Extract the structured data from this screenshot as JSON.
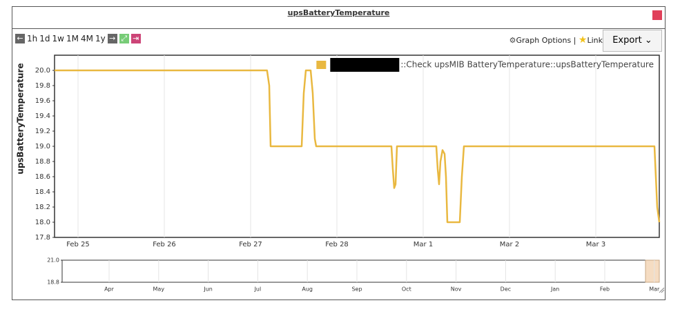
{
  "header": {
    "title": "upsBatteryTemperature"
  },
  "toolbar": {
    "ranges": [
      "1h",
      "1d",
      "1w",
      "1M",
      "4M",
      "1y"
    ],
    "graph_options": "Graph Options",
    "separator": "|",
    "link": "Link",
    "export": "Export"
  },
  "chart_data": {
    "type": "line",
    "y_label": "upsBatteryTemperature",
    "ylim": [
      17.8,
      20.2
    ],
    "yticks": [
      17.8,
      {
        "value": 18,
        "label": "18.0"
      },
      18.2,
      18.4,
      18.6,
      18.8,
      {
        "value": 19,
        "label": "19.0"
      },
      19.2,
      19.4,
      19.6,
      19.8,
      {
        "value": 20,
        "label": "20.0"
      }
    ],
    "xlim": [
      -0.272,
      6.736
    ],
    "xticks": [
      {
        "value": 0,
        "label": "Feb 25"
      },
      {
        "value": 1,
        "label": "Feb 26"
      },
      {
        "value": 2,
        "label": "Feb 27"
      },
      {
        "value": 3,
        "label": "Feb 28"
      },
      {
        "value": 4,
        "label": "Mar 1"
      },
      {
        "value": 5,
        "label": "Mar 2"
      },
      {
        "value": 6,
        "label": "Mar 3"
      }
    ],
    "grid": true,
    "legend": "top-right",
    "series": [
      {
        "name": "::Check upsMIB BatteryTemperature::upsBatteryTemperature",
        "color": "#e9b840",
        "x": [
          -0.272,
          2.19,
          2.216,
          2.232,
          2.592,
          2.616,
          2.64,
          2.696,
          2.72,
          2.744,
          2.76,
          3.632,
          3.648,
          3.664,
          3.68,
          3.696,
          4.152,
          4.168,
          4.184,
          4.2,
          4.224,
          4.248,
          4.264,
          4.28,
          4.424,
          4.448,
          4.472,
          6.68,
          6.696,
          6.712,
          6.736
        ],
        "values": [
          20.0,
          20.0,
          19.8,
          19.0,
          19.0,
          19.7,
          20.0,
          20.0,
          19.7,
          19.1,
          19.0,
          19.0,
          18.7,
          18.45,
          18.5,
          19.0,
          19.0,
          18.7,
          18.5,
          18.8,
          18.95,
          18.9,
          18.6,
          18.0,
          18.0,
          18.6,
          19.0,
          19.0,
          18.6,
          18.2,
          18.0
        ]
      }
    ]
  },
  "navigator": {
    "ylim": [
      18.8,
      21.0
    ],
    "yticks": [
      {
        "value": 21,
        "label": "21.0"
      },
      {
        "value": 18.8,
        "label": "18.8"
      }
    ],
    "months": [
      "Apr",
      "May",
      "Jun",
      "Jul",
      "Aug",
      "Sep",
      "Oct",
      "Nov",
      "Dec",
      "Jan",
      "Feb",
      "Mar"
    ]
  }
}
